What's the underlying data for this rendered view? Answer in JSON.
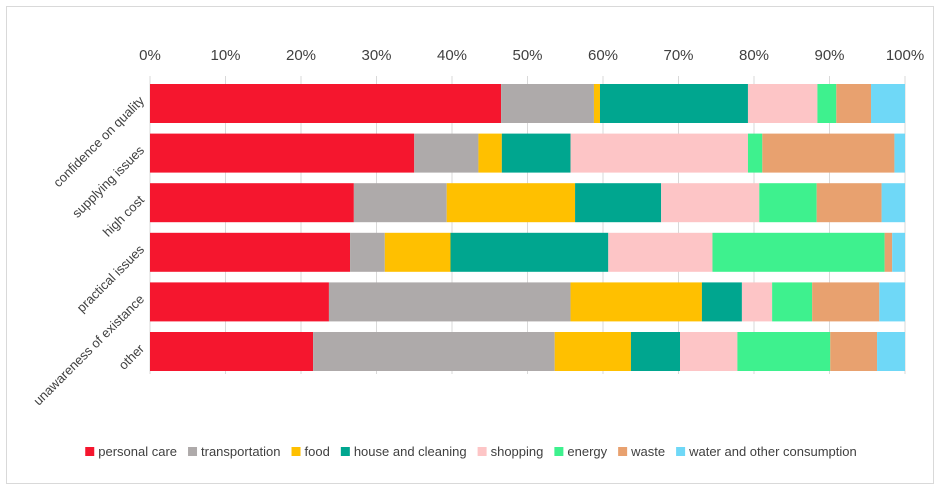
{
  "chart_data": {
    "type": "bar",
    "orientation": "horizontal",
    "stacked": "percent",
    "categories": [
      "confidence on quality",
      "supplying issues",
      "high cost",
      "practical issues",
      "unawareness of existance",
      "other"
    ],
    "x_ticks": [
      "0%",
      "10%",
      "20%",
      "30%",
      "40%",
      "50%",
      "60%",
      "70%",
      "80%",
      "90%",
      "100%"
    ],
    "xlim": [
      0,
      100
    ],
    "x_axis_position": "top",
    "grid": "vertical",
    "legend_position": "bottom",
    "series": [
      {
        "name": "personal care",
        "color": "#f5162e",
        "values": [
          46.5,
          35.0,
          27.0,
          26.5,
          23.7,
          21.6
        ]
      },
      {
        "name": "transportation",
        "color": "#aeaaaa",
        "values": [
          12.3,
          8.5,
          12.3,
          4.6,
          32.0,
          32.0
        ]
      },
      {
        "name": "food",
        "color": "#ffc000",
        "values": [
          0.8,
          3.1,
          17.0,
          8.7,
          17.4,
          10.1
        ]
      },
      {
        "name": "house and cleaning",
        "color": "#00a68f",
        "values": [
          19.6,
          9.1,
          11.4,
          20.9,
          5.3,
          6.5
        ]
      },
      {
        "name": "shopping",
        "color": "#fdc5c6",
        "values": [
          9.2,
          23.5,
          13.0,
          13.8,
          4.0,
          7.6
        ]
      },
      {
        "name": "energy",
        "color": "#3ef18e",
        "values": [
          2.5,
          1.9,
          7.6,
          22.8,
          5.3,
          12.3
        ]
      },
      {
        "name": "waste",
        "color": "#e8a16f",
        "values": [
          4.6,
          17.5,
          8.6,
          1.0,
          8.9,
          6.2
        ]
      },
      {
        "name": "water and other consumption",
        "color": "#6fd8f7",
        "values": [
          4.5,
          1.4,
          3.1,
          1.7,
          3.4,
          3.7
        ]
      }
    ]
  }
}
